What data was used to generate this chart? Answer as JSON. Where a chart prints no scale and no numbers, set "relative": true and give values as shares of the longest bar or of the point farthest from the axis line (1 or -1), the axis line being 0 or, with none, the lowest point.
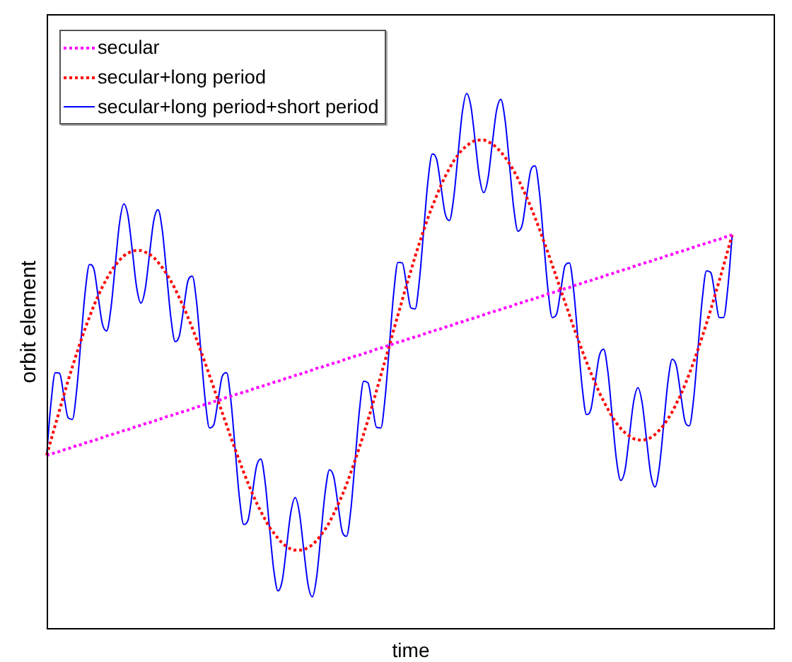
{
  "chart_data": {
    "type": "line",
    "xlabel": "time",
    "ylabel": "orbit element",
    "relative": true,
    "legend": "top left",
    "categories": [
      null,
      null,
      null,
      null,
      null,
      null,
      null,
      null,
      null,
      null,
      null,
      null,
      null,
      null,
      null,
      null,
      null,
      null,
      null,
      null,
      null,
      null,
      null,
      null,
      null,
      null,
      null,
      null,
      null,
      null,
      null,
      null,
      null,
      null,
      null,
      null,
      null,
      null,
      null,
      null,
      null,
      null,
      null,
      null,
      null,
      null,
      null,
      null,
      null,
      null,
      null,
      null,
      null,
      null,
      null,
      null,
      null,
      null,
      null,
      null,
      null,
      null,
      null,
      null,
      null,
      null,
      null,
      null,
      null,
      null,
      null,
      null,
      null,
      null,
      null,
      null,
      null,
      null,
      null,
      null,
      null,
      null,
      null,
      null,
      null,
      null,
      null,
      null,
      null,
      null,
      null,
      null,
      null,
      null,
      null,
      null,
      null,
      null,
      null,
      null,
      null,
      null,
      null,
      null,
      null,
      null,
      null,
      null,
      null,
      null,
      null,
      null,
      null,
      null,
      null,
      null,
      null,
      null,
      null,
      null,
      null,
      null,
      null,
      null,
      null,
      null,
      null,
      null,
      null,
      null,
      null,
      null,
      null,
      null,
      null,
      null,
      null,
      null,
      null,
      null,
      null,
      null,
      null,
      null,
      null,
      null,
      null,
      null,
      null,
      null,
      null,
      null,
      null,
      null,
      null,
      null,
      null,
      null,
      null,
      null,
      null,
      null,
      null,
      null,
      null,
      null,
      null,
      null,
      null,
      null,
      null
    ],
    "series": [
      {
        "name": "secular",
        "color": "#ff00ff",
        "line_style": "dotted",
        "values": [
          0.325,
          0.327,
          0.33,
          0.332,
          0.335,
          0.337,
          0.34,
          0.343,
          0.345,
          0.348,
          0.35,
          0.353,
          0.355,
          0.358,
          0.361,
          0.363,
          0.366,
          0.368,
          0.371,
          0.373,
          0.376,
          0.379,
          0.381,
          0.384,
          0.386,
          0.389,
          0.391,
          0.394,
          0.397,
          0.399,
          0.402,
          0.404,
          0.407,
          0.409,
          0.412,
          0.415,
          0.417,
          0.42,
          0.422,
          0.425,
          0.427,
          0.43,
          0.433,
          0.435,
          0.438,
          0.44,
          0.443,
          0.445,
          0.448,
          0.451,
          0.453,
          0.456,
          0.458,
          0.461,
          0.463,
          0.466,
          0.469,
          0.471,
          0.474,
          0.476,
          0.479,
          0.481,
          0.484,
          0.487,
          0.489,
          0.492,
          0.494,
          0.497,
          0.499,
          0.502,
          0.505,
          0.507,
          0.51,
          0.512,
          0.515,
          0.517,
          0.52,
          0.523,
          0.525,
          0.528,
          0.53,
          0.533,
          0.536,
          0.538,
          0.541,
          0.543,
          0.546,
          0.548,
          0.551,
          0.554,
          0.556,
          0.559,
          0.561,
          0.564,
          0.566,
          0.569,
          0.572,
          0.574,
          0.577,
          0.579,
          0.582,
          0.584,
          0.587,
          0.59,
          0.592,
          0.595,
          0.597,
          0.6,
          0.602,
          0.605,
          0.608,
          0.61,
          0.613,
          0.615,
          0.618,
          0.62,
          0.623,
          0.626,
          0.628,
          0.631,
          0.633,
          0.636,
          0.638,
          0.641,
          0.644,
          0.646,
          0.649,
          0.651,
          0.654,
          0.656,
          0.659,
          0.662,
          0.664,
          0.667,
          0.669,
          0.672,
          0.674,
          0.677,
          0.68,
          0.682,
          0.685,
          0.687,
          0.69,
          0.692,
          0.695,
          0.698,
          0.7,
          0.703,
          0.705,
          0.708,
          0.71,
          0.713,
          0.716,
          0.718,
          0.721,
          0.723,
          0.726,
          0.728,
          0.731,
          0.734,
          0.736,
          null,
          null,
          null,
          null,
          null,
          null,
          null,
          null,
          null,
          null
        ]
      },
      {
        "name": "secular+long period",
        "color": "#ff0000",
        "line_style": "dotted",
        "values": [
          0.325,
          0.353,
          0.381,
          0.409,
          0.437,
          0.464,
          0.49,
          0.515,
          0.539,
          0.562,
          0.583,
          0.604,
          0.622,
          0.639,
          0.654,
          0.668,
          0.679,
          0.689,
          0.697,
          0.702,
          0.706,
          0.707,
          0.707,
          0.704,
          0.7,
          0.694,
          0.685,
          0.675,
          0.663,
          0.65,
          0.635,
          0.618,
          0.601,
          0.582,
          0.562,
          0.541,
          0.519,
          0.497,
          0.474,
          0.451,
          0.427,
          0.404,
          0.381,
          0.358,
          0.336,
          0.314,
          0.293,
          0.273,
          0.254,
          0.236,
          0.22,
          0.205,
          0.191,
          0.18,
          0.17,
          0.161,
          0.155,
          0.15,
          0.148,
          0.148,
          0.149,
          0.153,
          0.158,
          0.166,
          0.176,
          0.187,
          0.2,
          0.216,
          0.233,
          0.251,
          0.271,
          0.293,
          0.316,
          0.34,
          0.365,
          0.391,
          0.418,
          0.446,
          0.474,
          0.502,
          0.53,
          0.559,
          0.587,
          0.615,
          0.643,
          0.669,
          0.696,
          0.721,
          0.745,
          0.768,
          0.789,
          0.809,
          0.828,
          0.845,
          0.86,
          0.874,
          0.885,
          0.895,
          0.902,
          0.908,
          0.912,
          0.913,
          0.913,
          0.91,
          0.906,
          0.899,
          0.891,
          0.881,
          0.869,
          0.856,
          0.841,
          0.824,
          0.807,
          0.788,
          0.768,
          0.747,
          0.725,
          0.703,
          0.68,
          0.657,
          0.633,
          0.61,
          0.587,
          0.564,
          0.542,
          0.52,
          0.499,
          0.479,
          0.46,
          0.442,
          0.426,
          0.411,
          0.397,
          0.385,
          0.375,
          0.367,
          0.361,
          0.356,
          0.354,
          0.353,
          0.355,
          0.358,
          0.364,
          0.372,
          0.381,
          0.393,
          0.406,
          0.422,
          0.438,
          0.457,
          0.477,
          0.499,
          0.522,
          0.546,
          0.571,
          0.597,
          0.624,
          0.651,
          0.679,
          0.708,
          0.736,
          null,
          null,
          null,
          null,
          null,
          null,
          null,
          null,
          null,
          null
        ]
      },
      {
        "name": "secular+long period+short period",
        "color": "#0000ff",
        "line_style": "solid",
        "values": [
          0.325,
          0.422,
          0.479,
          0.478,
          0.437,
          0.395,
          0.392,
          0.446,
          0.539,
          0.631,
          0.681,
          0.673,
          0.622,
          0.57,
          0.557,
          0.599,
          0.679,
          0.758,
          0.794,
          0.771,
          0.706,
          0.638,
          0.609,
          0.635,
          0.7,
          0.763,
          0.783,
          0.744,
          0.663,
          0.581,
          0.537,
          0.549,
          0.601,
          0.651,
          0.659,
          0.61,
          0.519,
          0.428,
          0.376,
          0.382,
          0.427,
          0.473,
          0.479,
          0.427,
          0.336,
          0.245,
          0.196,
          0.204,
          0.254,
          0.305,
          0.318,
          0.274,
          0.191,
          0.111,
          0.072,
          0.092,
          0.155,
          0.219,
          0.246,
          0.217,
          0.149,
          0.084,
          0.061,
          0.097,
          0.176,
          0.256,
          0.298,
          0.285,
          0.233,
          0.182,
          0.174,
          0.224,
          0.316,
          0.409,
          0.463,
          0.46,
          0.418,
          0.377,
          0.376,
          0.433,
          0.53,
          0.628,
          0.685,
          0.684,
          0.643,
          0.6,
          0.598,
          0.652,
          0.745,
          0.837,
          0.887,
          0.878,
          0.828,
          0.776,
          0.763,
          0.805,
          0.885,
          0.964,
          1.0,
          0.977,
          0.912,
          0.844,
          0.815,
          0.841,
          0.906,
          0.968,
          0.989,
          0.95,
          0.869,
          0.787,
          0.743,
          0.755,
          0.807,
          0.857,
          0.865,
          0.816,
          0.725,
          0.634,
          0.582,
          0.588,
          0.633,
          0.679,
          0.684,
          0.633,
          0.542,
          0.451,
          0.401,
          0.41,
          0.46,
          0.511,
          0.523,
          0.48,
          0.397,
          0.316,
          0.278,
          0.298,
          0.361,
          0.425,
          0.451,
          0.422,
          0.355,
          0.289,
          0.266,
          0.303,
          0.381,
          0.462,
          0.504,
          0.491,
          0.438,
          0.388,
          0.38,
          0.43,
          0.522,
          0.615,
          0.669,
          0.666,
          0.624,
          0.582,
          0.582,
          0.639,
          0.736,
          null,
          null,
          null,
          null,
          null,
          null,
          null,
          null,
          null,
          null
        ]
      }
    ]
  }
}
